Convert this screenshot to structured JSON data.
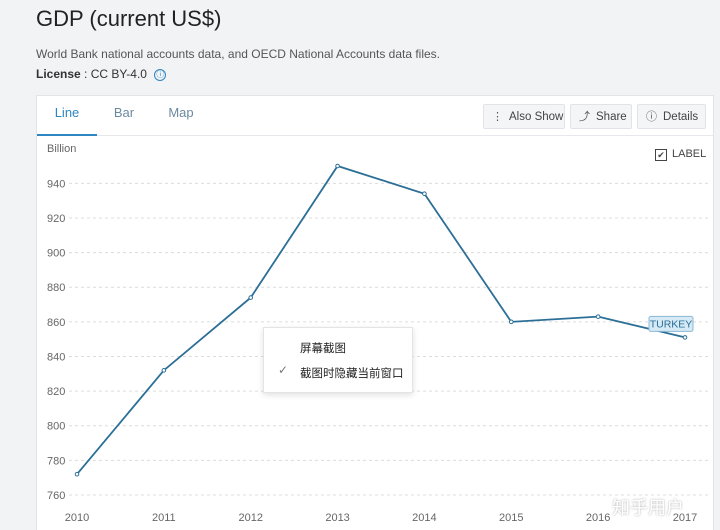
{
  "page": {
    "title": "GDP (current US$)",
    "subtitle": "World Bank national accounts data, and OECD National Accounts data files.",
    "license_label": "License",
    "license_value": " : CC BY-4.0",
    "info_icon": "ⓘ"
  },
  "tabs": [
    {
      "label": "Line",
      "active": true
    },
    {
      "label": "Bar",
      "active": false
    },
    {
      "label": "Map",
      "active": false
    }
  ],
  "toolbar": {
    "also_show_icon": "⋮",
    "also_show_label": "Also Show",
    "share_icon": "⤴",
    "share_label": "Share",
    "details_icon": "ⓘ",
    "details_label": "Details"
  },
  "label_toggle": {
    "checked": true,
    "check_glyph": "✔",
    "label": "LABEL"
  },
  "context_menu": {
    "item1": "屏幕截图",
    "item2": "截图时隐藏当前窗口",
    "check_glyph": "✓"
  },
  "watermark": "知乎用户",
  "colors": {
    "line": "#2c6f96",
    "accent": "#2e86c1",
    "series_label_bg": "#d6eaf6",
    "series_label_border": "#8bb8d4"
  },
  "chart_data": {
    "type": "line",
    "ylabel": "Billion",
    "x": [
      2010,
      2011,
      2012,
      2013,
      2014,
      2015,
      2016,
      2017
    ],
    "series": [
      {
        "name": "TURKEY",
        "values": [
          772,
          832,
          874,
          950,
          934,
          860,
          863,
          851
        ]
      }
    ],
    "yticks": [
      760,
      780,
      800,
      820,
      840,
      860,
      880,
      900,
      920,
      940
    ],
    "ylim": [
      755,
      955
    ],
    "grid": true
  }
}
